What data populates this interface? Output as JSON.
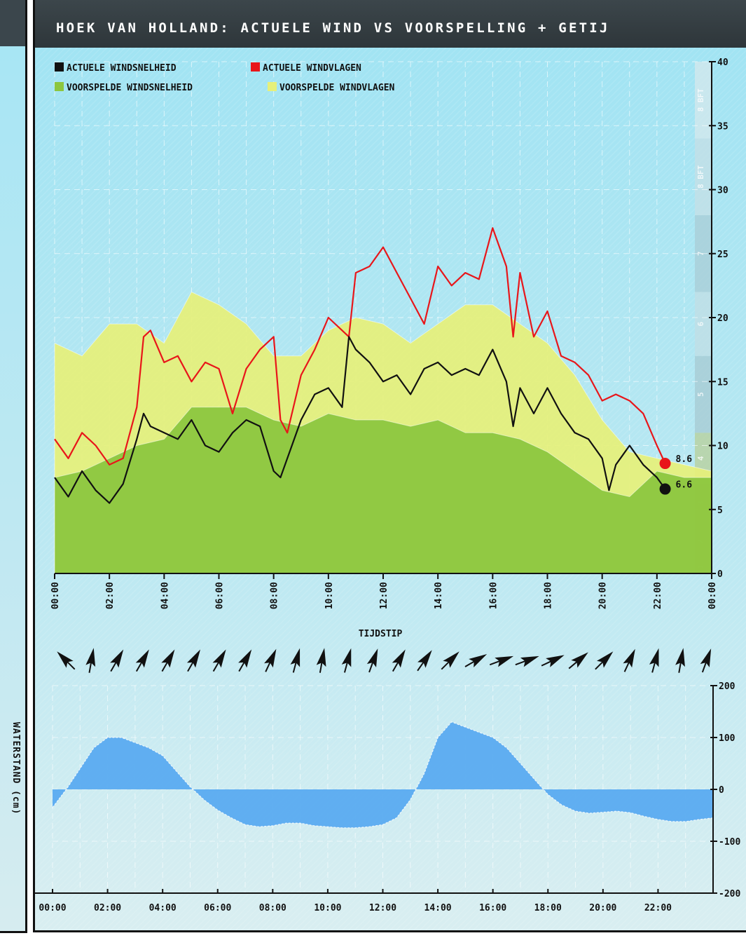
{
  "panel": {
    "title": "HOEK VAN HOLLAND: ACTUELE WIND VS VOORSPELLING + GETIJ",
    "left_label": "WATERSTAND (cm)"
  },
  "colors": {
    "header_bg": "#3b464c",
    "sky_top": "#9fe3f3",
    "actual_speed": "#111111",
    "actual_gusts": "#e8161a",
    "forecast_speed": "#8cc63f",
    "forecast_gusts": "#e6f07a",
    "tide": "#5aabf0"
  },
  "chart_data": [
    {
      "type": "area",
      "xlabel": "TIJDSTIP",
      "ylabel": "",
      "ylim": [
        0,
        40
      ],
      "x_ticks": [
        "00:00",
        "02:00",
        "04:00",
        "06:00",
        "08:00",
        "10:00",
        "12:00",
        "14:00",
        "16:00",
        "18:00",
        "20:00",
        "22:00",
        "00:00"
      ],
      "y_ticks": [
        "0",
        "5",
        "10",
        "15",
        "20",
        "25",
        "30",
        "35",
        "40"
      ],
      "bft_ticks": [
        "1",
        "2",
        "3",
        "4",
        "5",
        "6",
        "7",
        "8 BFT"
      ],
      "grid": true,
      "legend_position": "top-left",
      "legend": [
        "ACTUELE WINDSNELHEID",
        "ACTUELE WINDVLAGEN",
        "VOORSPELDE WINDSNELHEID",
        "VOORSPELDE WINDVLAGEN"
      ],
      "end_labels": {
        "gusts": "8.6",
        "speed": "6.6"
      },
      "series": [
        {
          "name": "VOORSPELDE WINDVLAGEN",
          "color": "#e6f07a",
          "x": [
            0,
            1,
            2,
            3,
            4,
            5,
            6,
            7,
            8,
            9,
            10,
            11,
            12,
            13,
            14,
            15,
            16,
            17,
            18,
            19,
            20,
            21,
            22,
            23,
            24
          ],
          "y": [
            18,
            17,
            19.5,
            19.5,
            18,
            22,
            21,
            19.5,
            17,
            17,
            19,
            20,
            19.5,
            18,
            19.5,
            21,
            21,
            19.5,
            18,
            15.5,
            12,
            9.5,
            9,
            8.5,
            8
          ]
        },
        {
          "name": "VOORSPELDE WINDSNELHEID",
          "color": "#8cc63f",
          "x": [
            0,
            1,
            2,
            3,
            4,
            5,
            6,
            7,
            8,
            9,
            10,
            11,
            12,
            13,
            14,
            15,
            16,
            17,
            18,
            19,
            20,
            21,
            22,
            23,
            24
          ],
          "y": [
            7.5,
            8,
            9,
            10,
            10.5,
            13,
            13,
            13,
            12,
            11.5,
            12.5,
            12,
            12,
            11.5,
            12,
            11,
            11,
            10.5,
            9.5,
            8,
            6.5,
            6,
            8,
            7.5,
            7.5
          ]
        },
        {
          "name": "ACTUELE WINDVLAGEN",
          "color": "#e8161a",
          "x": [
            0,
            0.5,
            1,
            1.5,
            2,
            2.5,
            3,
            3.25,
            3.5,
            4,
            4.5,
            5,
            5.5,
            6,
            6.5,
            7,
            7.5,
            8,
            8.25,
            8.5,
            9,
            9.5,
            10,
            10.5,
            10.75,
            11,
            11.5,
            12,
            12.5,
            13,
            13.5,
            14,
            14.5,
            15,
            15.5,
            16,
            16.5,
            16.75,
            17,
            17.5,
            18,
            18.5,
            19,
            19.5,
            20,
            20.5,
            21,
            21.5,
            22,
            22.3
          ],
          "y": [
            10.5,
            9,
            11,
            10,
            8.5,
            9,
            13,
            18.5,
            19,
            16.5,
            17,
            15,
            16.5,
            16,
            12.5,
            16,
            17.5,
            18.5,
            12,
            11,
            15.5,
            17.5,
            20,
            19,
            18.5,
            23.5,
            24,
            25.5,
            23.5,
            21.5,
            19.5,
            24,
            22.5,
            23.5,
            23,
            27,
            24,
            18.5,
            23.5,
            18.5,
            20.5,
            17,
            16.5,
            15.5,
            13.5,
            14,
            13.5,
            12.5,
            10,
            8.6
          ]
        },
        {
          "name": "ACTUELE WINDSNELHEID",
          "color": "#111111",
          "x": [
            0,
            0.5,
            1,
            1.5,
            2,
            2.5,
            3,
            3.25,
            3.5,
            4,
            4.5,
            5,
            5.5,
            6,
            6.5,
            7,
            7.5,
            8,
            8.25,
            8.5,
            9,
            9.5,
            10,
            10.5,
            10.75,
            11,
            11.5,
            12,
            12.5,
            13,
            13.5,
            14,
            14.5,
            15,
            15.5,
            16,
            16.5,
            16.75,
            17,
            17.5,
            18,
            18.5,
            19,
            19.5,
            20,
            20.25,
            20.5,
            21,
            21.5,
            22,
            22.3
          ],
          "y": [
            7.5,
            6,
            8,
            6.5,
            5.5,
            7,
            10.5,
            12.5,
            11.5,
            11,
            10.5,
            12,
            10,
            9.5,
            11,
            12,
            11.5,
            8,
            7.5,
            9,
            12,
            14,
            14.5,
            13,
            18.5,
            17.5,
            16.5,
            15,
            15.5,
            14,
            16,
            16.5,
            15.5,
            16,
            15.5,
            17.5,
            15,
            11.5,
            14.5,
            12.5,
            14.5,
            12.5,
            11,
            10.5,
            9,
            6.5,
            8.5,
            10,
            8.5,
            7.5,
            6.6
          ]
        }
      ]
    },
    {
      "type": "area",
      "ylabel": "WATERSTAND (cm)",
      "ylim": [
        -200,
        200
      ],
      "x_ticks": [
        "00:00",
        "02:00",
        "04:00",
        "06:00",
        "08:00",
        "10:00",
        "12:00",
        "14:00",
        "16:00",
        "18:00",
        "20:00",
        "22:00"
      ],
      "y_ticks": [
        "200",
        "100",
        "0",
        "-100",
        "-200"
      ],
      "grid": true,
      "series": [
        {
          "name": "waterstand",
          "color": "#5aabf0",
          "x": [
            0,
            0.5,
            1,
            1.5,
            2,
            2.5,
            3,
            3.5,
            4,
            4.5,
            5,
            5.5,
            6,
            6.5,
            7,
            7.5,
            8,
            8.5,
            9,
            9.5,
            10,
            10.5,
            11,
            11.5,
            12,
            12.5,
            13,
            13.5,
            14,
            14.5,
            15,
            15.5,
            16,
            16.5,
            17,
            17.5,
            18,
            18.5,
            19,
            19.5,
            20,
            20.5,
            21,
            21.5,
            22,
            22.5,
            23,
            23.5,
            24
          ],
          "y": [
            -35,
            0,
            40,
            80,
            100,
            100,
            90,
            80,
            65,
            35,
            5,
            -20,
            -40,
            -55,
            -68,
            -72,
            -70,
            -65,
            -65,
            -70,
            -72,
            -74,
            -74,
            -72,
            -68,
            -55,
            -20,
            30,
            100,
            130,
            120,
            110,
            100,
            80,
            50,
            20,
            -10,
            -30,
            -42,
            -46,
            -44,
            -42,
            -45,
            -52,
            -58,
            -62,
            -62,
            -58,
            -55
          ]
        }
      ]
    }
  ],
  "wind_arrows": {
    "count": 26,
    "direction_deg": [
      315,
      10,
      30,
      30,
      30,
      30,
      30,
      30,
      25,
      15,
      10,
      15,
      20,
      30,
      35,
      45,
      60,
      70,
      70,
      65,
      50,
      45,
      25,
      15,
      10,
      20
    ]
  }
}
